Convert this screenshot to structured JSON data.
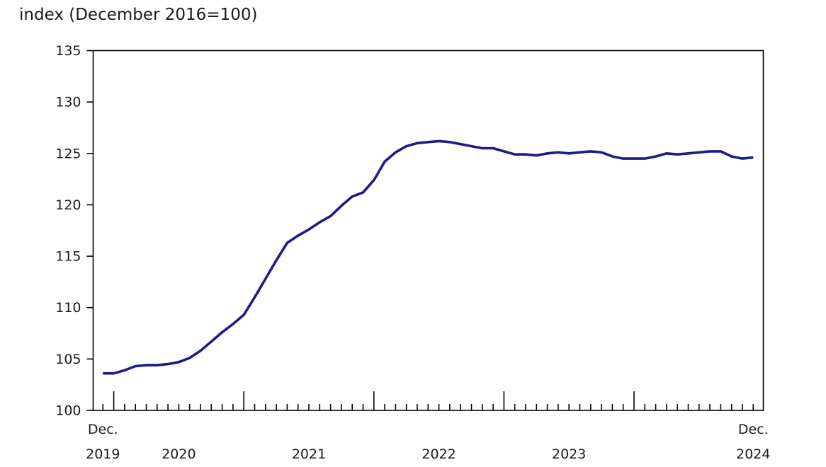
{
  "chart_data": {
    "type": "line",
    "title": "index (December 2016=100)",
    "line_color": "#1b1b8a",
    "axis_color": "#000000",
    "grid": false,
    "legend": "none",
    "ylim": [
      100,
      135
    ],
    "yticks": [
      100,
      105,
      110,
      115,
      120,
      125,
      130,
      135
    ],
    "x_axis": {
      "start": [
        "Dec.",
        "2019"
      ],
      "end": [
        "Dec.",
        "2024"
      ],
      "years": [
        "2020",
        "2021",
        "2022",
        "2023"
      ]
    },
    "months": [
      "2019-12",
      "2020-01",
      "2020-02",
      "2020-03",
      "2020-04",
      "2020-05",
      "2020-06",
      "2020-07",
      "2020-08",
      "2020-09",
      "2020-10",
      "2020-11",
      "2020-12",
      "2021-01",
      "2021-02",
      "2021-03",
      "2021-04",
      "2021-05",
      "2021-06",
      "2021-07",
      "2021-08",
      "2021-09",
      "2021-10",
      "2021-11",
      "2021-12",
      "2022-01",
      "2022-02",
      "2022-03",
      "2022-04",
      "2022-05",
      "2022-06",
      "2022-07",
      "2022-08",
      "2022-09",
      "2022-10",
      "2022-11",
      "2022-12",
      "2023-01",
      "2023-02",
      "2023-03",
      "2023-04",
      "2023-05",
      "2023-06",
      "2023-07",
      "2023-08",
      "2023-09",
      "2023-10",
      "2023-11",
      "2023-12",
      "2024-01",
      "2024-02",
      "2024-03",
      "2024-04",
      "2024-05",
      "2024-06",
      "2024-07",
      "2024-08",
      "2024-09",
      "2024-10",
      "2024-11",
      "2024-12"
    ],
    "values": [
      103.6,
      103.6,
      103.9,
      104.3,
      104.4,
      104.4,
      104.5,
      104.7,
      105.1,
      105.8,
      106.7,
      107.6,
      108.4,
      109.3,
      111.0,
      112.8,
      114.6,
      116.3,
      117.0,
      117.6,
      118.3,
      118.9,
      119.9,
      120.8,
      121.2,
      122.4,
      124.2,
      125.1,
      125.7,
      126.0,
      126.1,
      126.2,
      126.1,
      125.9,
      125.7,
      125.5,
      125.5,
      125.2,
      124.9,
      124.9,
      124.8,
      125.0,
      125.1,
      125.0,
      125.1,
      125.2,
      125.1,
      124.7,
      124.5,
      124.5,
      124.5,
      124.7,
      125.0,
      124.9,
      125.0,
      125.1,
      125.2,
      125.2,
      124.7,
      124.5,
      124.6
    ]
  }
}
